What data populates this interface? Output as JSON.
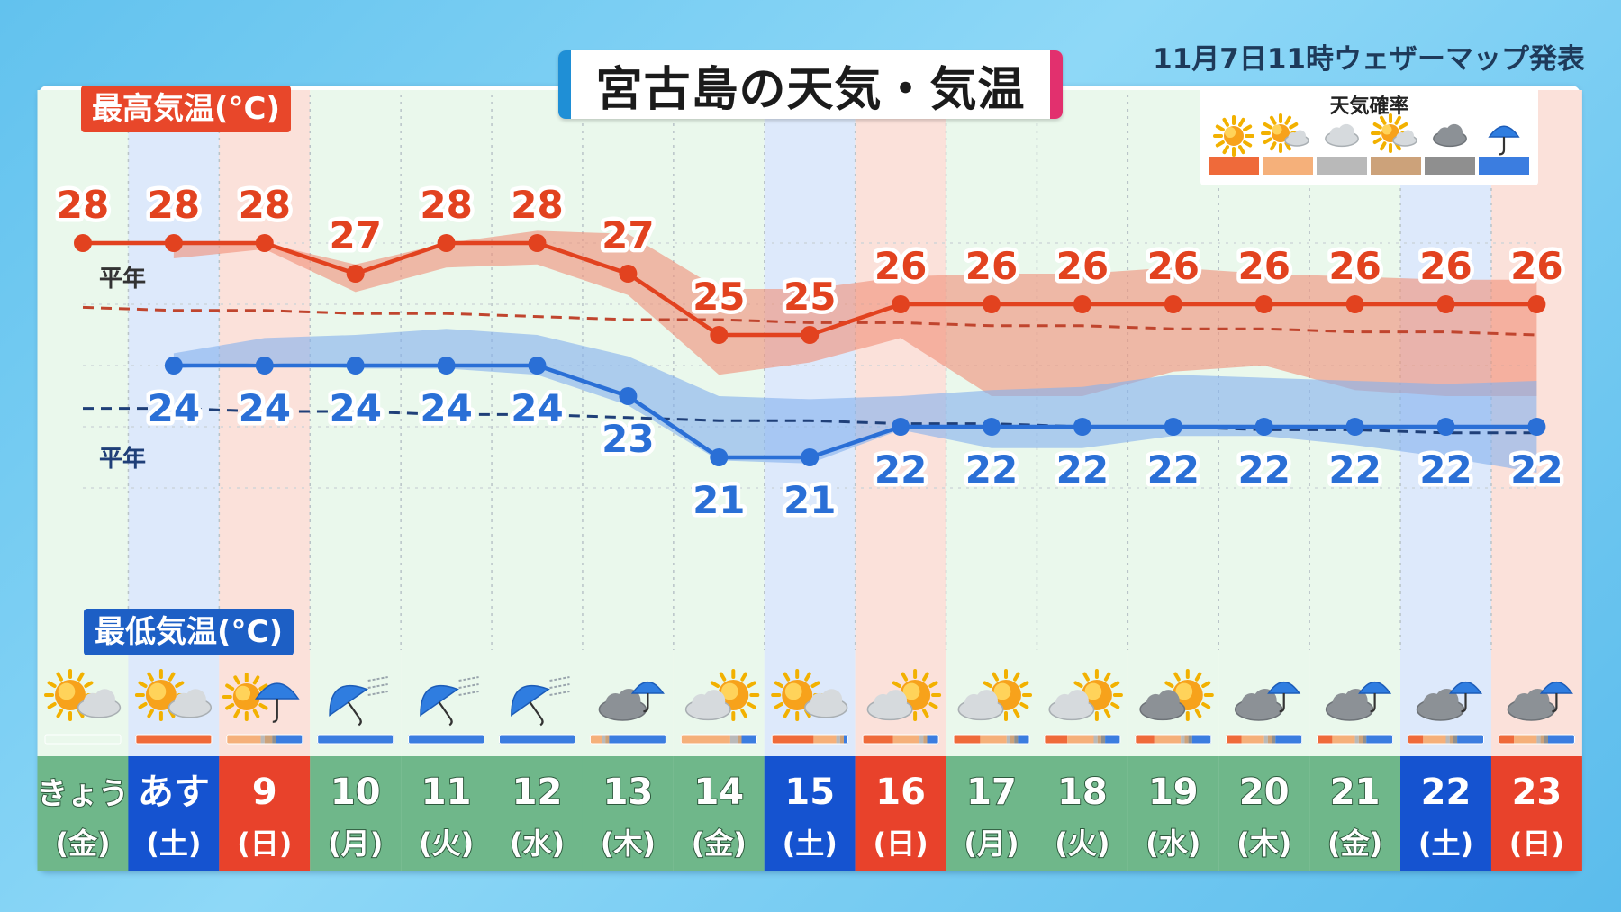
{
  "header": {
    "title": "宮古島の天気・気温",
    "issued": "11月7日11時ウェザーマップ発表"
  },
  "labels": {
    "high_tag": "最高気温(°C)",
    "low_tag": "最低気温(°C)",
    "normal_label": "平年"
  },
  "legend": {
    "title": "天気確率",
    "items": [
      {
        "icon": "sun-icon",
        "color": "#ef6a3a"
      },
      {
        "icon": "sun-cloud-icon",
        "color": "#f5b07a"
      },
      {
        "icon": "cloud-icon",
        "color": "#b9b9b9"
      },
      {
        "icon": "cloud-sun-icon",
        "color": "#cca27a"
      },
      {
        "icon": "dark-cloud-icon",
        "color": "#8f8f8f"
      },
      {
        "icon": "umbrella-icon",
        "color": "#3b7de0"
      }
    ]
  },
  "colors": {
    "high": "#e2421f",
    "high_band": "#f0917a",
    "low": "#2a6fd6",
    "low_band": "#86b2ee",
    "saturday": "#1553d0",
    "sunday": "#e8422b",
    "weekday": "#6fb78a"
  },
  "days": [
    {
      "date": "きょう",
      "dow": "(金)",
      "kind": "weekday",
      "icon": "sun-cloud-icon",
      "bar": [
        0,
        0,
        0,
        0,
        0,
        0
      ]
    },
    {
      "date": "あす",
      "dow": "(土)",
      "kind": "saturday",
      "icon": "sun-cloud-icon",
      "bar": [
        1,
        0,
        0,
        0,
        0,
        0
      ]
    },
    {
      "date": "9",
      "dow": "(日)",
      "kind": "sunday",
      "icon": "sun-umbrella-icon",
      "bar": [
        0,
        0.45,
        0.05,
        0.1,
        0.05,
        0.35
      ]
    },
    {
      "date": "10",
      "dow": "(月)",
      "kind": "weekday",
      "icon": "wind-umbrella-icon",
      "bar": [
        0,
        0,
        0,
        0,
        0,
        1
      ]
    },
    {
      "date": "11",
      "dow": "(火)",
      "kind": "weekday",
      "icon": "wind-umbrella-icon",
      "bar": [
        0,
        0,
        0,
        0,
        0,
        1
      ]
    },
    {
      "date": "12",
      "dow": "(水)",
      "kind": "weekday",
      "icon": "wind-umbrella-icon",
      "bar": [
        0,
        0,
        0,
        0,
        0,
        1
      ]
    },
    {
      "date": "13",
      "dow": "(木)",
      "kind": "weekday",
      "icon": "cloud-umbrella-icon",
      "bar": [
        0,
        0.15,
        0.05,
        0.05,
        0,
        0.75
      ]
    },
    {
      "date": "14",
      "dow": "(金)",
      "kind": "weekday",
      "icon": "cloud-sun-icon",
      "bar": [
        0,
        0.65,
        0.1,
        0.05,
        0,
        0.2
      ]
    },
    {
      "date": "15",
      "dow": "(土)",
      "kind": "saturday",
      "icon": "sun-cloud-icon",
      "bar": [
        0.55,
        0.3,
        0.05,
        0.05,
        0,
        0.05
      ]
    },
    {
      "date": "16",
      "dow": "(日)",
      "kind": "sunday",
      "icon": "cloud-sun-icon",
      "bar": [
        0.4,
        0.35,
        0.05,
        0.05,
        0,
        0.15
      ]
    },
    {
      "date": "17",
      "dow": "(月)",
      "kind": "weekday",
      "icon": "cloud-sun-icon",
      "bar": [
        0.35,
        0.35,
        0.05,
        0.05,
        0.05,
        0.15
      ]
    },
    {
      "date": "18",
      "dow": "(火)",
      "kind": "weekday",
      "icon": "cloud-sun-icon",
      "bar": [
        0.3,
        0.35,
        0.05,
        0.05,
        0.05,
        0.2
      ]
    },
    {
      "date": "19",
      "dow": "(水)",
      "kind": "weekday",
      "icon": "dark-cloud-sun-icon",
      "bar": [
        0.25,
        0.35,
        0.05,
        0.05,
        0.05,
        0.25
      ]
    },
    {
      "date": "20",
      "dow": "(木)",
      "kind": "weekday",
      "icon": "cloud-umbrella-icon",
      "bar": [
        0.2,
        0.3,
        0.05,
        0.05,
        0.05,
        0.35
      ]
    },
    {
      "date": "21",
      "dow": "(金)",
      "kind": "weekday",
      "icon": "cloud-umbrella-icon",
      "bar": [
        0.2,
        0.3,
        0.05,
        0.05,
        0.05,
        0.35
      ]
    },
    {
      "date": "22",
      "dow": "(土)",
      "kind": "saturday",
      "icon": "cloud-umbrella-icon",
      "bar": [
        0.2,
        0.3,
        0.05,
        0.05,
        0.05,
        0.35
      ]
    },
    {
      "date": "23",
      "dow": "(日)",
      "kind": "sunday",
      "icon": "cloud-umbrella-icon",
      "bar": [
        0.2,
        0.3,
        0.05,
        0.05,
        0.05,
        0.35
      ]
    }
  ],
  "chart_data": {
    "type": "line",
    "title": "宮古島の天気・気温",
    "categories": [
      "きょう(金)",
      "あす(土)",
      "9(日)",
      "10(月)",
      "11(火)",
      "12(水)",
      "13(木)",
      "14(金)",
      "15(土)",
      "16(日)",
      "17(月)",
      "18(火)",
      "19(水)",
      "20(木)",
      "21(金)",
      "22(土)",
      "23(日)"
    ],
    "series": [
      {
        "name": "最高気温(°C)",
        "values": [
          28,
          28,
          28,
          27,
          28,
          28,
          27,
          25,
          25,
          26,
          26,
          26,
          26,
          26,
          26,
          26,
          26
        ],
        "band_upper": [
          null,
          28.0,
          28.0,
          27.3,
          28.0,
          28.4,
          28.3,
          26.5,
          26.5,
          26.9,
          27.0,
          27.0,
          27.2,
          27.0,
          26.9,
          26.8,
          26.8
        ],
        "band_lower": [
          null,
          27.5,
          27.8,
          26.4,
          27.2,
          27.3,
          26.3,
          23.7,
          24.1,
          24.9,
          23.0,
          23.0,
          23.8,
          24.0,
          23.2,
          23.0,
          23.0
        ]
      },
      {
        "name": "最低気温(°C)",
        "values": [
          null,
          24,
          24,
          24,
          24,
          24,
          23,
          21,
          21,
          22,
          22,
          22,
          22,
          22,
          22,
          22,
          22
        ],
        "band_upper": [
          null,
          24.4,
          24.9,
          25.0,
          25.2,
          25.0,
          24.3,
          23.0,
          22.9,
          23.0,
          23.2,
          23.3,
          23.7,
          23.6,
          23.5,
          23.4,
          23.5
        ],
        "band_lower": [
          null,
          23.9,
          24.1,
          23.9,
          23.9,
          23.7,
          22.7,
          20.9,
          20.8,
          21.9,
          21.3,
          21.3,
          21.7,
          21.7,
          21.4,
          21.0,
          20.5
        ]
      },
      {
        "name": "平年",
        "values": [
          25.9,
          25.8,
          25.8,
          25.7,
          25.7,
          25.6,
          25.5,
          25.5,
          25.4,
          25.4,
          25.3,
          25.3,
          25.2,
          25.2,
          25.1,
          25.1,
          25.0
        ]
      },
      {
        "name": "平年",
        "values": [
          22.6,
          22.6,
          22.5,
          22.5,
          22.4,
          22.4,
          22.3,
          22.2,
          22.2,
          22.1,
          22.1,
          22.0,
          22.0,
          21.9,
          21.9,
          21.8,
          21.8
        ]
      }
    ],
    "ylim": [
      18.5,
      30.5
    ],
    "grid": true
  }
}
